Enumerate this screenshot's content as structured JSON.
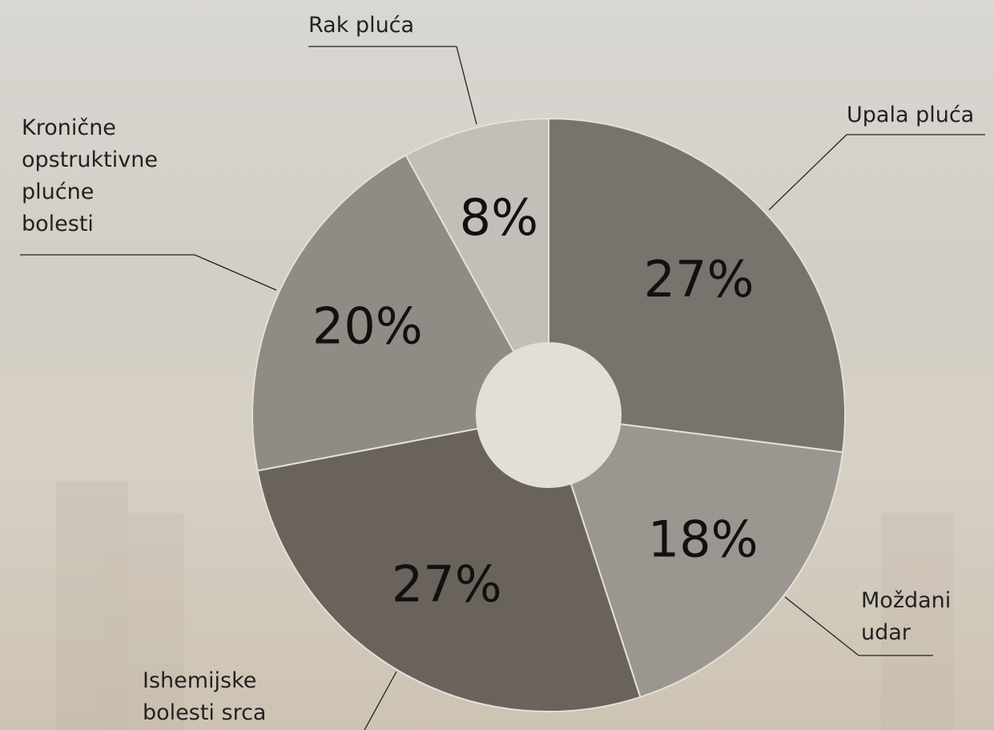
{
  "chart_data": {
    "type": "donut",
    "categories": [
      "Upala pluća",
      "Moždani udar",
      "Ishemijske bolesti srca",
      "Kronične opstruktivne plućne bolesti",
      "Rak pluća"
    ],
    "values": [
      27,
      18,
      27,
      20,
      8
    ],
    "value_labels": [
      "27%",
      "18%",
      "27%",
      "20%",
      "8%"
    ],
    "colors": [
      "#77736d",
      "#9b968f",
      "#69635b",
      "#8f8b85",
      "#c3beb8"
    ]
  }
}
